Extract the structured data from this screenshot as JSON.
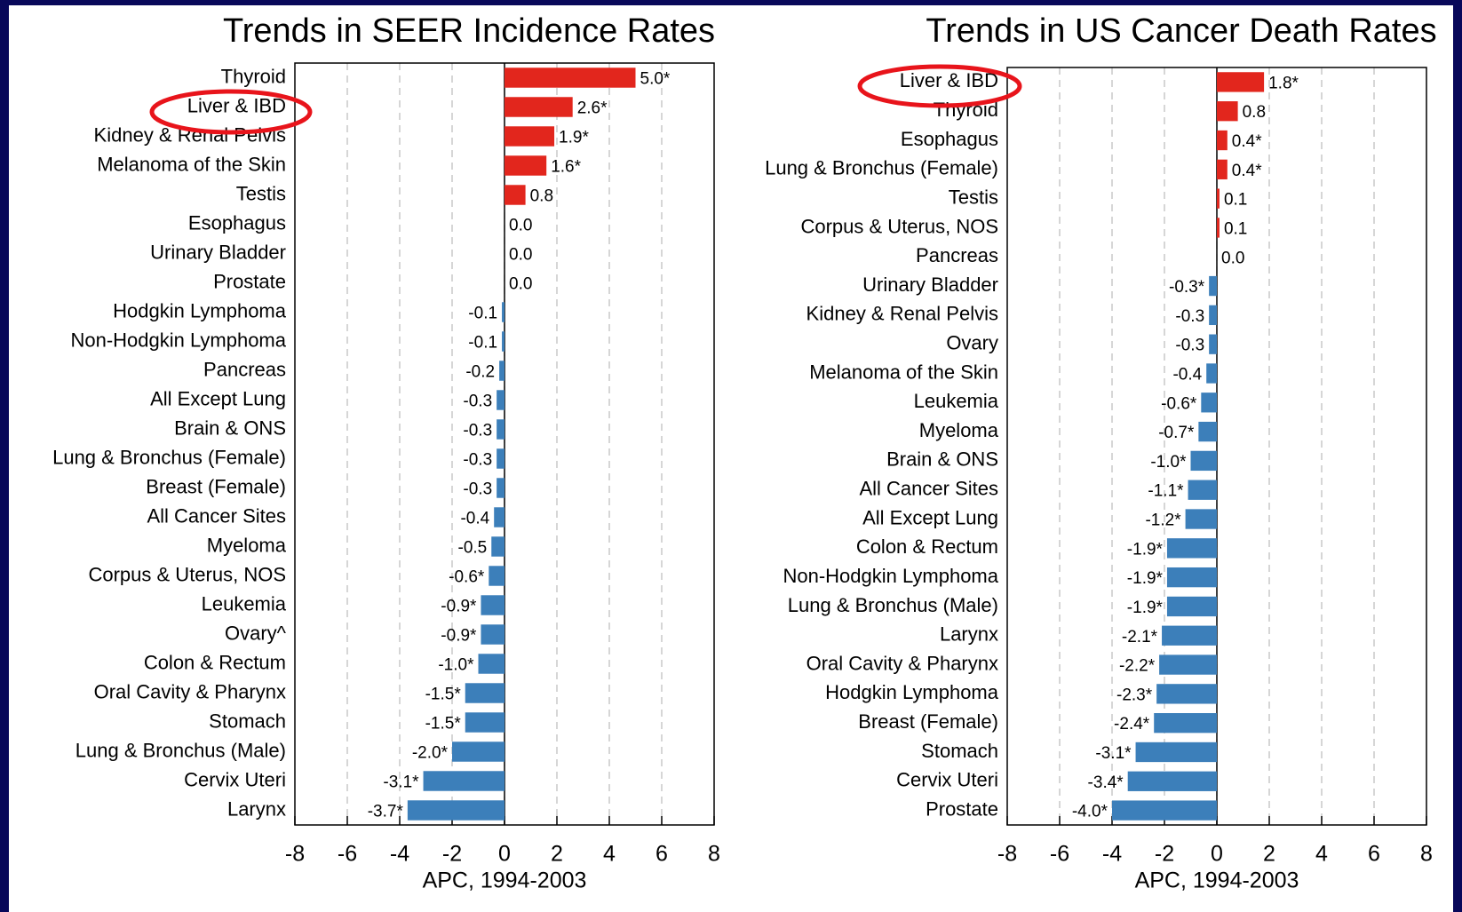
{
  "chart_data": [
    {
      "type": "hbar",
      "title": "Trends in SEER Incidence Rates",
      "xlabel": "APC, 1994-2003",
      "categories": [
        "Thyroid",
        "Liver & IBD",
        "Kidney & Renal Pelvis",
        "Melanoma of the Skin",
        "Testis",
        "Esophagus",
        "Urinary Bladder",
        "Prostate",
        "Hodgkin Lymphoma",
        "Non-Hodgkin Lymphoma",
        "Pancreas",
        "All Except Lung",
        "Brain & ONS",
        "Lung & Bronchus (Female)",
        "Breast (Female)",
        "All Cancer Sites",
        "Myeloma",
        "Corpus & Uterus, NOS",
        "Leukemia",
        "Ovary^",
        "Colon & Rectum",
        "Oral Cavity & Pharynx",
        "Stomach",
        "Lung & Bronchus (Male)",
        "Cervix Uteri",
        "Larynx"
      ],
      "values": [
        5.0,
        2.6,
        1.9,
        1.6,
        0.8,
        0.0,
        0.0,
        0.0,
        -0.1,
        -0.1,
        -0.2,
        -0.3,
        -0.3,
        -0.3,
        -0.3,
        -0.4,
        -0.5,
        -0.6,
        -0.9,
        -0.9,
        -1.0,
        -1.5,
        -1.5,
        -2.0,
        -3.1,
        -3.7
      ],
      "value_labels": [
        "5.0*",
        "2.6*",
        "1.9*",
        "1.6*",
        "0.8",
        "0.0",
        "0.0",
        "0.0",
        "-0.1",
        "-0.1",
        "-0.2",
        "-0.3",
        "-0.3",
        "-0.3",
        "-0.3",
        "-0.4",
        "-0.5",
        "-0.6*",
        "-0.9*",
        "-0.9*",
        "-1.0*",
        "-1.5*",
        "-1.5*",
        "-2.0*",
        "-3.1*",
        "-3.7*"
      ],
      "positive_color": "#e2261d",
      "negative_color": "#3c7fba",
      "xlim": [
        -8,
        8
      ],
      "xticks": [
        -8,
        -6,
        -4,
        -2,
        0,
        2,
        4,
        6,
        8
      ],
      "grid": true
    },
    {
      "type": "hbar",
      "title": "Trends in US Cancer Death Rates",
      "xlabel": "APC, 1994-2003",
      "categories": [
        "Liver & IBD",
        "Thyroid",
        "Esophagus",
        "Lung & Bronchus (Female)",
        "Testis",
        "Corpus & Uterus, NOS",
        "Pancreas",
        "Urinary Bladder",
        "Kidney & Renal Pelvis",
        "Ovary",
        "Melanoma of the Skin",
        "Leukemia",
        "Myeloma",
        "Brain & ONS",
        "All Cancer Sites",
        "All Except Lung",
        "Colon & Rectum",
        "Non-Hodgkin Lymphoma",
        "Lung & Bronchus (Male)",
        "Larynx",
        "Oral Cavity & Pharynx",
        "Hodgkin Lymphoma",
        "Breast (Female)",
        "Stomach",
        "Cervix Uteri",
        "Prostate"
      ],
      "values": [
        1.8,
        0.8,
        0.4,
        0.4,
        0.1,
        0.1,
        0.0,
        -0.3,
        -0.3,
        -0.3,
        -0.4,
        -0.6,
        -0.7,
        -1.0,
        -1.1,
        -1.2,
        -1.9,
        -1.9,
        -1.9,
        -2.1,
        -2.2,
        -2.3,
        -2.4,
        -3.1,
        -3.4,
        -4.0
      ],
      "value_labels": [
        "1.8*",
        "0.8",
        "0.4*",
        "0.4*",
        "0.1",
        "0.1",
        "0.0",
        "-0.3*",
        "-0.3",
        "-0.3",
        "-0.4",
        "-0.6*",
        "-0.7*",
        "-1.0*",
        "-1.1*",
        "-1.2*",
        "-1.9*",
        "-1.9*",
        "-1.9*",
        "-2.1*",
        "-2.2*",
        "-2.3*",
        "-2.4*",
        "-3.1*",
        "-3.4*",
        "-4.0*"
      ],
      "positive_color": "#e2261d",
      "negative_color": "#3c7fba",
      "xlim": [
        -8,
        8
      ],
      "xticks": [
        -8,
        -6,
        -4,
        -2,
        0,
        2,
        4,
        6,
        8
      ],
      "grid": true
    }
  ]
}
